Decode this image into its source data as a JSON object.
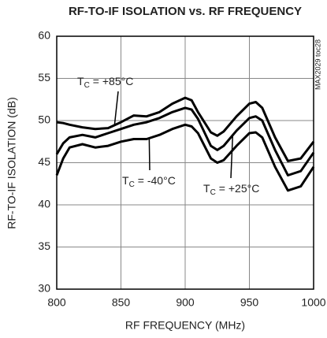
{
  "chart_data": {
    "type": "line",
    "title": "RF-TO-IF ISOLATION vs. RF FREQUENCY",
    "x_label": "RF FREQUENCY (MHz)",
    "y_label": "RF-TO-IF ISOLATION (dB)",
    "watermark": "MAX2029 toc28",
    "x": [
      800,
      805,
      810,
      820,
      830,
      840,
      850,
      860,
      870,
      880,
      890,
      900,
      905,
      910,
      920,
      925,
      930,
      940,
      950,
      955,
      960,
      970,
      980,
      990,
      1000
    ],
    "series": [
      {
        "color": "#000000",
        "values": [
          49.8,
          49.7,
          49.5,
          49.2,
          49.0,
          49.1,
          49.8,
          50.6,
          50.5,
          51.0,
          52.0,
          52.7,
          52.4,
          51.0,
          48.6,
          48.2,
          48.7,
          50.5,
          52.0,
          52.2,
          51.5,
          48.0,
          45.2,
          45.5,
          47.5
        ]
      },
      {
        "color": "#000000",
        "values": [
          46.0,
          47.3,
          48.0,
          48.3,
          48.0,
          48.5,
          49.0,
          49.5,
          49.8,
          50.3,
          51.0,
          51.5,
          51.3,
          50.2,
          47.0,
          46.5,
          47.0,
          48.8,
          50.3,
          50.5,
          50.0,
          46.5,
          43.5,
          44.0,
          46.2
        ]
      },
      {
        "color": "#000000",
        "values": [
          43.5,
          45.5,
          46.8,
          47.2,
          46.8,
          47.0,
          47.5,
          47.8,
          47.8,
          48.3,
          49.0,
          49.5,
          49.3,
          48.5,
          45.5,
          45.0,
          45.3,
          47.0,
          48.5,
          48.6,
          48.0,
          44.5,
          41.7,
          42.2,
          44.5
        ]
      }
    ],
    "annotations": [
      {
        "symbol": "T",
        "sub": "C",
        "text": "= +85°C",
        "series": 0
      },
      {
        "symbol": "T",
        "sub": "C",
        "text": "= -40°C",
        "series": 2
      },
      {
        "symbol": "T",
        "sub": "C",
        "text": "= +25°C",
        "series": 1
      }
    ],
    "xlim": [
      800,
      1000
    ],
    "ylim": [
      30,
      60
    ],
    "xticks": [
      800,
      850,
      900,
      950,
      1000
    ],
    "yticks": [
      30,
      35,
      40,
      45,
      50,
      55,
      60
    ],
    "grid": true
  }
}
